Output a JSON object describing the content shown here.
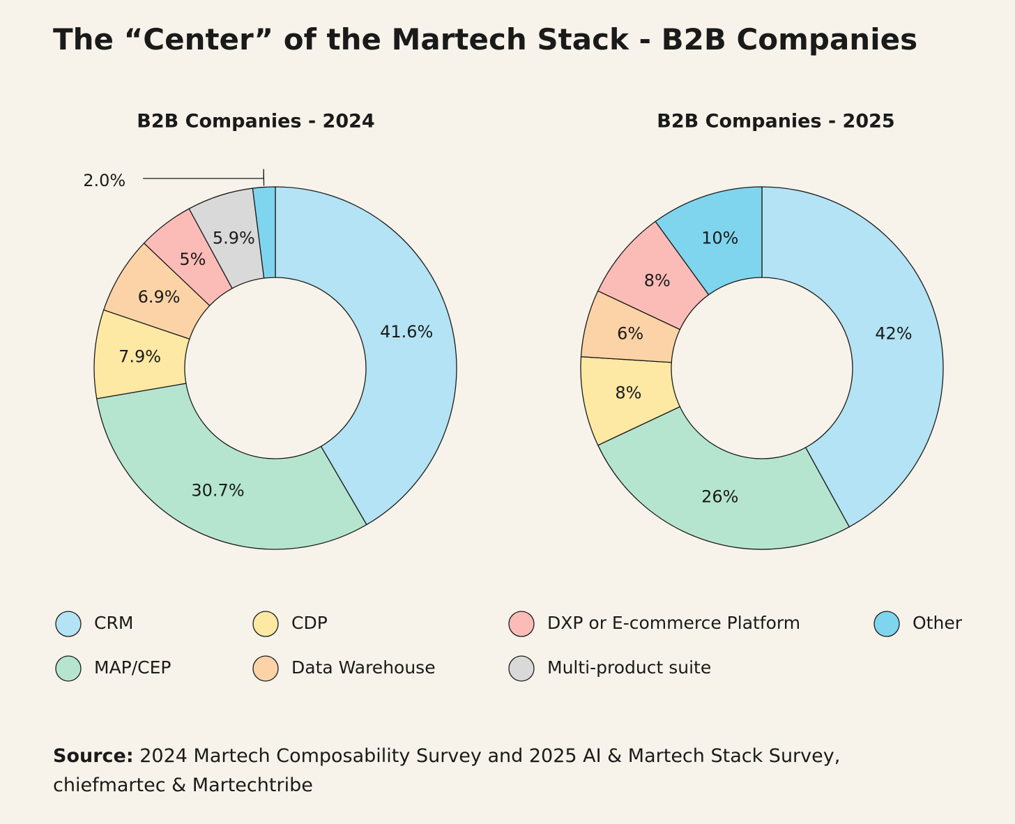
{
  "title": "The “Center” of the Martech Stack - B2B Companies",
  "legend": {
    "labels": [
      "CRM",
      "MAP/CEP",
      "CDP",
      "Data Warehouse",
      "DXP or E-commerce Platform",
      "Multi-product suite",
      "Other"
    ],
    "colors": [
      "#b3e3f4",
      "#b5e5cf",
      "#fde8a4",
      "#fcd3a6",
      "#fbbcb8",
      "#d9d9d9",
      "#7fd5ee"
    ]
  },
  "chart_data": [
    {
      "type": "donut",
      "title": "B2B Companies - 2024",
      "values": [
        41.6,
        30.7,
        7.9,
        6.9,
        5,
        5.9,
        2.0
      ],
      "value_labels": [
        "41.6%",
        "30.7%",
        "7.9%",
        "6.9%",
        "5%",
        "5.9%",
        "2.0%"
      ]
    },
    {
      "type": "donut",
      "title": "B2B Companies - 2025",
      "values": [
        42,
        26,
        8,
        6,
        8,
        null,
        10
      ],
      "value_labels": [
        "42%",
        "26%",
        "8%",
        "6%",
        "8%",
        null,
        "10%"
      ]
    }
  ],
  "source": {
    "label": "Source:",
    "text": "2024 Martech Composability Survey and 2025 AI & Martech Stack Survey, chiefmartec & Martechtribe"
  }
}
